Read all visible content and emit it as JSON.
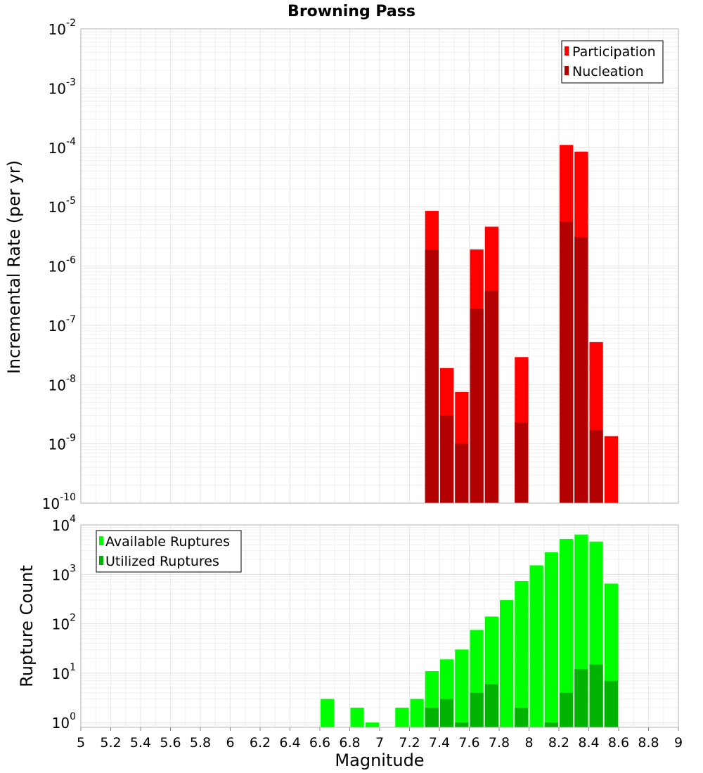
{
  "chart_data": [
    {
      "type": "bar",
      "title": "Browning Pass",
      "ylabel": "Incremental Rate (per yr)",
      "xlabel": "",
      "yscale": "log",
      "ylim": [
        1e-10,
        0.01
      ],
      "xlim": [
        5,
        9
      ],
      "bin_width": 0.1,
      "yticks": [
        {
          "base": "10",
          "exp": "-10"
        },
        {
          "base": "10",
          "exp": "-9"
        },
        {
          "base": "10",
          "exp": "-8"
        },
        {
          "base": "10",
          "exp": "-7"
        },
        {
          "base": "10",
          "exp": "-6"
        },
        {
          "base": "10",
          "exp": "-5"
        },
        {
          "base": "10",
          "exp": "-4"
        },
        {
          "base": "10",
          "exp": "-3"
        },
        {
          "base": "10",
          "exp": "-2"
        }
      ],
      "legend_position": "top-right",
      "grid": true,
      "x": [
        7.35,
        7.45,
        7.55,
        7.65,
        7.75,
        7.95,
        8.25,
        8.35,
        8.45,
        8.55
      ],
      "series": [
        {
          "name": "Participation",
          "color": "#ff0000",
          "values": [
            8.5e-06,
            1.9e-08,
            7.5e-09,
            1.9e-06,
            4.6e-06,
            2.9e-08,
            0.00011,
            8.5e-05,
            5.2e-08,
            1.35e-09
          ]
        },
        {
          "name": "Nucleation",
          "color": "#b30000",
          "values": [
            1.9e-06,
            3e-09,
            1e-09,
            1.9e-07,
            3.8e-07,
            2.3e-09,
            5.6e-06,
            3.1e-06,
            1.7e-09,
            null
          ]
        }
      ]
    },
    {
      "type": "bar",
      "title": "",
      "ylabel": "Rupture Count",
      "xlabel": "Magnitude",
      "yscale": "log",
      "ylim": [
        0.8,
        10000
      ],
      "xlim": [
        5,
        9
      ],
      "bin_width": 0.1,
      "xticks": [
        "5",
        "5.2",
        "5.4",
        "5.6",
        "5.8",
        "6",
        "6.2",
        "6.4",
        "6.6",
        "6.8",
        "7",
        "7.2",
        "7.4",
        "7.6",
        "7.8",
        "8",
        "8.2",
        "8.4",
        "8.6",
        "8.8",
        "9"
      ],
      "yticks": [
        {
          "base": "10",
          "exp": "0"
        },
        {
          "base": "10",
          "exp": "1"
        },
        {
          "base": "10",
          "exp": "2"
        },
        {
          "base": "10",
          "exp": "3"
        },
        {
          "base": "10",
          "exp": "4"
        }
      ],
      "legend_position": "top-left",
      "grid": true,
      "x": [
        6.65,
        6.85,
        6.95,
        7.15,
        7.25,
        7.35,
        7.45,
        7.55,
        7.65,
        7.75,
        7.85,
        7.95,
        8.05,
        8.15,
        8.25,
        8.35,
        8.45,
        8.55
      ],
      "series": [
        {
          "name": "Available Ruptures",
          "color": "#00ff00",
          "values": [
            3,
            2,
            1,
            2,
            3,
            11,
            19,
            30,
            75,
            140,
            300,
            730,
            1520,
            2800,
            5200,
            6400,
            4600,
            650
          ]
        },
        {
          "name": "Utilized Ruptures",
          "color": "#00b300",
          "values": [
            null,
            null,
            null,
            null,
            null,
            2,
            3,
            1,
            4,
            6,
            null,
            2,
            null,
            1,
            4,
            12,
            15,
            7
          ]
        }
      ]
    }
  ]
}
